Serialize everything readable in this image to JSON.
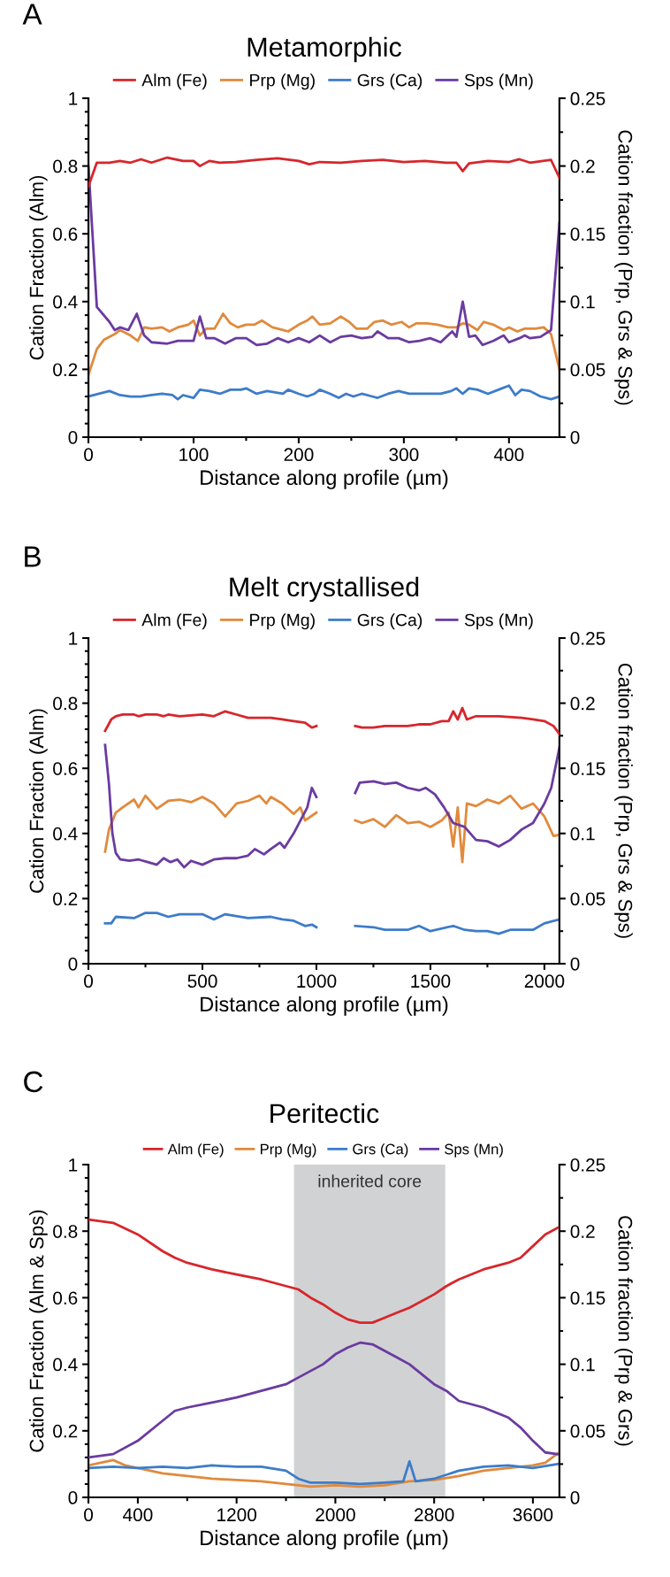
{
  "chart_data": [
    {
      "type": "line",
      "title": "Metamorphic",
      "xlabel": "Distance along profile (µm)",
      "ylabel": "Cation Fraction (Alm)",
      "y2label": "Cation fraction (Prp, Grs & Sps)",
      "annotations": [
        "A"
      ],
      "xlim": [
        0,
        448
      ],
      "xticks": [
        0,
        {
          "value": 50,
          "label": null
        },
        100,
        {
          "value": 150,
          "label": null
        },
        200,
        {
          "value": 250,
          "label": null
        },
        300,
        {
          "value": 350,
          "label": null
        },
        400
      ],
      "ylim": [
        0,
        1
      ],
      "yticks": [
        0,
        {
          "value": 0.04,
          "label": null
        },
        {
          "value": 0.08,
          "label": null
        },
        {
          "value": 0.12,
          "label": null
        },
        {
          "value": 0.16,
          "label": null
        },
        0.2,
        {
          "value": 0.24,
          "label": null
        },
        {
          "value": 0.28,
          "label": null
        },
        {
          "value": 0.32,
          "label": null
        },
        {
          "value": 0.36,
          "label": null
        },
        0.4,
        {
          "value": 0.44,
          "label": null
        },
        {
          "value": 0.48,
          "label": null
        },
        {
          "value": 0.52,
          "label": null
        },
        {
          "value": 0.56,
          "label": null
        },
        0.6,
        {
          "value": 0.64,
          "label": null
        },
        {
          "value": 0.68,
          "label": null
        },
        {
          "value": 0.72,
          "label": null
        },
        {
          "value": 0.76,
          "label": null
        },
        0.8,
        {
          "value": 0.84,
          "label": null
        },
        {
          "value": 0.88,
          "label": null
        },
        {
          "value": 0.92,
          "label": null
        },
        {
          "value": 0.96,
          "label": null
        },
        1
      ],
      "y2lim": [
        0,
        0.25
      ],
      "y2ticks": [
        0,
        {
          "value": 0.025,
          "label": null
        },
        0.05,
        {
          "value": 0.075,
          "label": null
        },
        0.1,
        {
          "value": 0.125,
          "label": null
        },
        0.15,
        {
          "value": 0.175,
          "label": null
        },
        0.2,
        {
          "value": 0.225,
          "label": null
        },
        0.25
      ],
      "legend": "top",
      "grid": false,
      "line_style": "solid",
      "marker": "none",
      "series": [
        {
          "name": "Alm (Fe)",
          "color": "#d7262b",
          "axis": "y",
          "x": [
            0,
            8,
            20,
            30,
            40,
            50,
            60,
            75,
            90,
            100,
            106,
            115,
            125,
            140,
            160,
            180,
            200,
            210,
            220,
            240,
            260,
            280,
            300,
            320,
            340,
            350,
            356,
            362,
            380,
            400,
            410,
            420,
            440,
            448
          ],
          "values": [
            0.74,
            0.81,
            0.81,
            0.815,
            0.81,
            0.82,
            0.81,
            0.825,
            0.815,
            0.815,
            0.8,
            0.815,
            0.81,
            0.812,
            0.818,
            0.823,
            0.815,
            0.805,
            0.812,
            0.81,
            0.815,
            0.818,
            0.812,
            0.815,
            0.81,
            0.81,
            0.785,
            0.808,
            0.815,
            0.812,
            0.82,
            0.81,
            0.818,
            0.765
          ]
        },
        {
          "name": "Prp (Mg)",
          "color": "#e08a3c",
          "axis": "y2",
          "x": [
            0,
            8,
            15,
            25,
            30,
            40,
            47,
            53,
            60,
            70,
            77,
            85,
            95,
            100,
            106,
            112,
            120,
            128,
            135,
            142,
            150,
            158,
            165,
            175,
            185,
            190,
            200,
            208,
            213,
            220,
            230,
            240,
            248,
            255,
            265,
            272,
            280,
            288,
            298,
            305,
            312,
            322,
            332,
            342,
            350,
            356,
            362,
            370,
            376,
            385,
            395,
            400,
            408,
            415,
            425,
            433,
            440,
            448
          ],
          "values": [
            0.046,
            0.065,
            0.072,
            0.076,
            0.079,
            0.075,
            0.071,
            0.081,
            0.08,
            0.081,
            0.078,
            0.081,
            0.083,
            0.086,
            0.075,
            0.08,
            0.08,
            0.091,
            0.084,
            0.081,
            0.083,
            0.083,
            0.086,
            0.081,
            0.079,
            0.078,
            0.083,
            0.086,
            0.089,
            0.083,
            0.084,
            0.089,
            0.085,
            0.08,
            0.08,
            0.085,
            0.086,
            0.083,
            0.085,
            0.081,
            0.084,
            0.084,
            0.083,
            0.081,
            0.081,
            0.084,
            0.083,
            0.079,
            0.085,
            0.083,
            0.079,
            0.081,
            0.078,
            0.08,
            0.08,
            0.081,
            0.076,
            0.05
          ]
        },
        {
          "name": "Grs (Ca)",
          "color": "#3d7cc9",
          "axis": "y2",
          "x": [
            0,
            10,
            20,
            30,
            40,
            50,
            60,
            70,
            80,
            85,
            90,
            100,
            106,
            115,
            125,
            135,
            145,
            150,
            160,
            170,
            185,
            190,
            200,
            208,
            215,
            220,
            230,
            238,
            245,
            252,
            260,
            270,
            275,
            285,
            295,
            305,
            315,
            325,
            335,
            345,
            350,
            356,
            362,
            370,
            380,
            390,
            400,
            406,
            412,
            420,
            430,
            440,
            448
          ],
          "values": [
            0.03,
            0.032,
            0.034,
            0.031,
            0.03,
            0.03,
            0.031,
            0.032,
            0.031,
            0.028,
            0.031,
            0.029,
            0.035,
            0.034,
            0.032,
            0.035,
            0.035,
            0.036,
            0.032,
            0.034,
            0.032,
            0.035,
            0.032,
            0.03,
            0.032,
            0.035,
            0.032,
            0.029,
            0.032,
            0.03,
            0.032,
            0.03,
            0.029,
            0.032,
            0.034,
            0.032,
            0.032,
            0.032,
            0.032,
            0.034,
            0.036,
            0.032,
            0.036,
            0.035,
            0.032,
            0.035,
            0.038,
            0.031,
            0.035,
            0.034,
            0.03,
            0.028,
            0.03
          ]
        },
        {
          "name": "Sps (Mn)",
          "color": "#6a3ba0",
          "axis": "y2",
          "x": [
            0,
            8,
            20,
            25,
            30,
            38,
            46,
            53,
            60,
            75,
            85,
            100,
            106,
            112,
            120,
            130,
            140,
            150,
            160,
            170,
            180,
            190,
            200,
            210,
            220,
            230,
            240,
            250,
            260,
            270,
            275,
            285,
            295,
            305,
            315,
            325,
            335,
            346,
            350,
            356,
            362,
            368,
            375,
            385,
            395,
            400,
            410,
            415,
            420,
            430,
            440,
            448
          ],
          "values": [
            0.2,
            0.096,
            0.085,
            0.079,
            0.081,
            0.079,
            0.091,
            0.075,
            0.07,
            0.069,
            0.071,
            0.071,
            0.089,
            0.073,
            0.073,
            0.069,
            0.073,
            0.073,
            0.068,
            0.069,
            0.073,
            0.07,
            0.073,
            0.07,
            0.075,
            0.07,
            0.074,
            0.075,
            0.073,
            0.074,
            0.078,
            0.073,
            0.073,
            0.07,
            0.071,
            0.073,
            0.07,
            0.078,
            0.074,
            0.1,
            0.074,
            0.075,
            0.068,
            0.071,
            0.075,
            0.07,
            0.073,
            0.075,
            0.073,
            0.074,
            0.079,
            0.158
          ]
        }
      ]
    },
    {
      "type": "line",
      "title": "Melt crystallised",
      "xlabel": "Distance along profile (µm)",
      "ylabel": "Cation Fraction (Alm)",
      "y2label": "Cation fraction (Prp, Grs & Sps)",
      "annotations": [
        "B"
      ],
      "xlim": [
        0,
        2066
      ],
      "xticks": [
        0,
        {
          "value": 250,
          "label": null
        },
        500,
        {
          "value": 750,
          "label": null
        },
        1000,
        {
          "value": 1250,
          "label": null
        },
        1500,
        {
          "value": 1750,
          "label": null
        },
        2000
      ],
      "ylim": [
        0,
        1
      ],
      "yticks": [
        0,
        {
          "value": 0.04,
          "label": null
        },
        {
          "value": 0.08,
          "label": null
        },
        {
          "value": 0.12,
          "label": null
        },
        {
          "value": 0.16,
          "label": null
        },
        0.2,
        {
          "value": 0.24,
          "label": null
        },
        {
          "value": 0.28,
          "label": null
        },
        {
          "value": 0.32,
          "label": null
        },
        {
          "value": 0.36,
          "label": null
        },
        0.4,
        {
          "value": 0.44,
          "label": null
        },
        {
          "value": 0.48,
          "label": null
        },
        {
          "value": 0.52,
          "label": null
        },
        {
          "value": 0.56,
          "label": null
        },
        0.6,
        {
          "value": 0.64,
          "label": null
        },
        {
          "value": 0.68,
          "label": null
        },
        {
          "value": 0.72,
          "label": null
        },
        {
          "value": 0.76,
          "label": null
        },
        0.8,
        {
          "value": 0.84,
          "label": null
        },
        {
          "value": 0.88,
          "label": null
        },
        {
          "value": 0.92,
          "label": null
        },
        {
          "value": 0.96,
          "label": null
        },
        1
      ],
      "y2lim": [
        0,
        0.25
      ],
      "y2ticks": [
        0,
        {
          "value": 0.025,
          "label": null
        },
        0.05,
        {
          "value": 0.075,
          "label": null
        },
        0.1,
        {
          "value": 0.125,
          "label": null
        },
        0.15,
        {
          "value": 0.175,
          "label": null
        },
        0.2,
        {
          "value": 0.225,
          "label": null
        },
        0.25
      ],
      "legend": "top",
      "grid": false,
      "line_style": "solid",
      "marker": "none",
      "series": [
        {
          "name": "Alm (Fe)",
          "color": "#d7262b",
          "axis": "y",
          "x": [
            73,
            100,
            120,
            150,
            200,
            220,
            250,
            300,
            330,
            350,
            400,
            500,
            550,
            600,
            650,
            700,
            750,
            800,
            850,
            900,
            950,
            980,
            1000,
            1085,
            1170,
            1200,
            1250,
            1300,
            1400,
            1450,
            1500,
            1550,
            1580,
            1600,
            1620,
            1640,
            1660,
            1700,
            1800,
            1900,
            1950,
            2000,
            2040,
            2066
          ],
          "values": [
            0.715,
            0.75,
            0.76,
            0.765,
            0.765,
            0.76,
            0.765,
            0.765,
            0.76,
            0.765,
            0.76,
            0.765,
            0.76,
            0.775,
            0.765,
            0.755,
            0.755,
            0.755,
            0.75,
            0.745,
            0.74,
            0.725,
            0.73,
            null,
            0.73,
            0.725,
            0.725,
            0.73,
            0.73,
            0.735,
            0.735,
            0.745,
            0.745,
            0.775,
            0.75,
            0.785,
            0.75,
            0.76,
            0.76,
            0.755,
            0.75,
            0.745,
            0.73,
            0.705
          ]
        },
        {
          "name": "Prp (Mg)",
          "color": "#e08a3c",
          "axis": "y2",
          "x": [
            73,
            90,
            120,
            150,
            200,
            220,
            250,
            300,
            350,
            400,
            450,
            500,
            550,
            600,
            650,
            700,
            750,
            780,
            800,
            850,
            900,
            930,
            950,
            1000,
            1085,
            1170,
            1200,
            1250,
            1300,
            1350,
            1400,
            1450,
            1500,
            1550,
            1580,
            1600,
            1620,
            1640,
            1660,
            1700,
            1750,
            1800,
            1850,
            1900,
            1950,
            2000,
            2040,
            2066
          ],
          "values": [
            0.086,
            0.103,
            0.116,
            0.12,
            0.126,
            0.12,
            0.129,
            0.119,
            0.125,
            0.126,
            0.124,
            0.128,
            0.123,
            0.113,
            0.123,
            0.125,
            0.129,
            0.123,
            0.128,
            0.123,
            0.115,
            0.12,
            0.11,
            0.116,
            null,
            0.11,
            0.108,
            0.111,
            0.105,
            0.114,
            0.108,
            0.109,
            0.105,
            0.11,
            0.116,
            0.09,
            0.12,
            0.078,
            0.123,
            0.121,
            0.126,
            0.123,
            0.129,
            0.119,
            0.123,
            0.113,
            0.098,
            0.099
          ]
        },
        {
          "name": "Grs (Ca)",
          "color": "#3d7cc9",
          "axis": "y2",
          "x": [
            73,
            100,
            120,
            200,
            250,
            300,
            350,
            400,
            500,
            550,
            600,
            700,
            800,
            850,
            900,
            950,
            980,
            1000,
            1085,
            1170,
            1250,
            1300,
            1400,
            1450,
            1500,
            1600,
            1650,
            1700,
            1750,
            1800,
            1850,
            1900,
            1950,
            2000,
            2066
          ],
          "values": [
            0.031,
            0.031,
            0.036,
            0.035,
            0.039,
            0.039,
            0.036,
            0.038,
            0.038,
            0.034,
            0.038,
            0.035,
            0.036,
            0.034,
            0.033,
            0.029,
            0.03,
            0.028,
            null,
            0.029,
            0.028,
            0.026,
            0.026,
            0.029,
            0.025,
            0.029,
            0.026,
            0.025,
            0.025,
            0.023,
            0.026,
            0.026,
            0.026,
            0.031,
            0.034
          ]
        },
        {
          "name": "Sps (Mn)",
          "color": "#6a3ba0",
          "axis": "y2",
          "x": [
            73,
            90,
            105,
            120,
            140,
            180,
            220,
            260,
            300,
            330,
            360,
            390,
            420,
            450,
            500,
            550,
            600,
            650,
            700,
            730,
            770,
            800,
            840,
            860,
            900,
            930,
            960,
            980,
            1000,
            1085,
            1170,
            1190,
            1250,
            1300,
            1350,
            1400,
            1450,
            1480,
            1520,
            1560,
            1600,
            1650,
            1700,
            1750,
            1800,
            1850,
            1900,
            1950,
            2000,
            2030,
            2066
          ],
          "values": [
            0.168,
            0.138,
            0.1,
            0.085,
            0.08,
            0.079,
            0.08,
            0.078,
            0.076,
            0.081,
            0.078,
            0.08,
            0.074,
            0.079,
            0.076,
            0.08,
            0.081,
            0.081,
            0.083,
            0.088,
            0.084,
            0.088,
            0.093,
            0.089,
            0.1,
            0.11,
            0.12,
            0.135,
            0.128,
            null,
            0.131,
            0.139,
            0.14,
            0.138,
            0.139,
            0.135,
            0.133,
            0.135,
            0.13,
            0.12,
            0.108,
            0.105,
            0.095,
            0.094,
            0.09,
            0.095,
            0.103,
            0.108,
            0.123,
            0.135,
            0.166
          ]
        }
      ]
    },
    {
      "type": "line",
      "title": "Peritectic",
      "xlabel": "Distance along profile (µm)",
      "ylabel": "Cation Fraction (Alm & Sps)",
      "y2label": "Cation fraction (Prp & Grs)",
      "annotations": [
        "C"
      ],
      "xlim": [
        0,
        3815
      ],
      "xticks": [
        0,
        400,
        {
          "value": 800,
          "label": null
        },
        1200,
        {
          "value": 1600,
          "label": null
        },
        2000,
        {
          "value": 2400,
          "label": null
        },
        2800,
        {
          "value": 3200,
          "label": null
        },
        3600
      ],
      "ylim": [
        0,
        1
      ],
      "yticks": [
        0,
        {
          "value": 0.04,
          "label": null
        },
        {
          "value": 0.08,
          "label": null
        },
        {
          "value": 0.12,
          "label": null
        },
        {
          "value": 0.16,
          "label": null
        },
        0.2,
        {
          "value": 0.24,
          "label": null
        },
        {
          "value": 0.28,
          "label": null
        },
        {
          "value": 0.32,
          "label": null
        },
        {
          "value": 0.36,
          "label": null
        },
        0.4,
        {
          "value": 0.44,
          "label": null
        },
        {
          "value": 0.48,
          "label": null
        },
        {
          "value": 0.52,
          "label": null
        },
        {
          "value": 0.56,
          "label": null
        },
        0.6,
        {
          "value": 0.64,
          "label": null
        },
        {
          "value": 0.68,
          "label": null
        },
        {
          "value": 0.72,
          "label": null
        },
        {
          "value": 0.76,
          "label": null
        },
        0.8,
        {
          "value": 0.84,
          "label": null
        },
        {
          "value": 0.88,
          "label": null
        },
        {
          "value": 0.92,
          "label": null
        },
        {
          "value": 0.96,
          "label": null
        },
        1
      ],
      "y2lim": [
        0,
        0.25
      ],
      "y2ticks": [
        0,
        {
          "value": 0.025,
          "label": null
        },
        0.05,
        {
          "value": 0.075,
          "label": null
        },
        0.1,
        {
          "value": 0.125,
          "label": null
        },
        0.15,
        {
          "value": 0.175,
          "label": null
        },
        0.2,
        {
          "value": 0.225,
          "label": null
        },
        0.25
      ],
      "bands": [
        {
          "axis": "x",
          "from": 1665,
          "to": 2890,
          "label": "inherited core",
          "color": "#d1d2d4"
        }
      ],
      "legend": "top",
      "grid": false,
      "line_style": "solid",
      "marker": "none",
      "series": [
        {
          "name": "Alm (Fe)",
          "color": "#d7262b",
          "axis": "y",
          "x": [
            0,
            200,
            400,
            600,
            700,
            800,
            1000,
            1200,
            1400,
            1600,
            1700,
            1800,
            1900,
            2000,
            2100,
            2200,
            2300,
            2400,
            2500,
            2600,
            2800,
            2900,
            3000,
            3200,
            3400,
            3500,
            3600,
            3700,
            3800
          ],
          "values": [
            0.835,
            0.825,
            0.79,
            0.74,
            0.72,
            0.705,
            0.685,
            0.67,
            0.655,
            0.635,
            0.625,
            0.6,
            0.58,
            0.555,
            0.535,
            0.525,
            0.525,
            0.54,
            0.555,
            0.57,
            0.61,
            0.635,
            0.655,
            0.685,
            0.705,
            0.72,
            0.755,
            0.79,
            0.81
          ]
        },
        {
          "name": "Prp (Mg)",
          "color": "#e08a3c",
          "axis": "y2",
          "x": [
            0,
            100,
            200,
            300,
            400,
            500,
            600,
            800,
            1000,
            1200,
            1400,
            1600,
            1800,
            2000,
            2200,
            2400,
            2600,
            2800,
            3000,
            3200,
            3400,
            3600,
            3700,
            3800
          ],
          "values": [
            0.024,
            0.026,
            0.028,
            0.024,
            0.022,
            0.02,
            0.018,
            0.016,
            0.014,
            0.013,
            0.012,
            0.01,
            0.008,
            0.009,
            0.008,
            0.009,
            0.012,
            0.013,
            0.016,
            0.02,
            0.022,
            0.024,
            0.026,
            0.033
          ]
        },
        {
          "name": "Grs (Ca)",
          "color": "#3d7cc9",
          "axis": "y2",
          "x": [
            0,
            200,
            400,
            600,
            800,
            1000,
            1200,
            1400,
            1600,
            1700,
            1800,
            2000,
            2200,
            2400,
            2550,
            2600,
            2650,
            2800,
            3000,
            3200,
            3400,
            3600,
            3800
          ],
          "values": [
            0.022,
            0.023,
            0.022,
            0.023,
            0.022,
            0.024,
            0.023,
            0.023,
            0.02,
            0.014,
            0.011,
            0.011,
            0.01,
            0.011,
            0.012,
            0.027,
            0.012,
            0.014,
            0.02,
            0.023,
            0.024,
            0.022,
            0.025
          ]
        },
        {
          "name": "Sps (Mn)",
          "color": "#6a3ba0",
          "axis": "y",
          "x": [
            0,
            200,
            400,
            600,
            700,
            800,
            1000,
            1200,
            1400,
            1600,
            1700,
            1800,
            1900,
            2000,
            2100,
            2200,
            2300,
            2400,
            2500,
            2600,
            2700,
            2800,
            2900,
            3000,
            3200,
            3400,
            3500,
            3600,
            3700,
            3800
          ],
          "values": [
            0.12,
            0.13,
            0.17,
            0.23,
            0.26,
            0.27,
            0.285,
            0.3,
            0.32,
            0.34,
            0.36,
            0.38,
            0.4,
            0.43,
            0.45,
            0.465,
            0.46,
            0.44,
            0.42,
            0.4,
            0.37,
            0.34,
            0.32,
            0.29,
            0.27,
            0.24,
            0.21,
            0.17,
            0.135,
            0.13
          ]
        }
      ]
    }
  ]
}
